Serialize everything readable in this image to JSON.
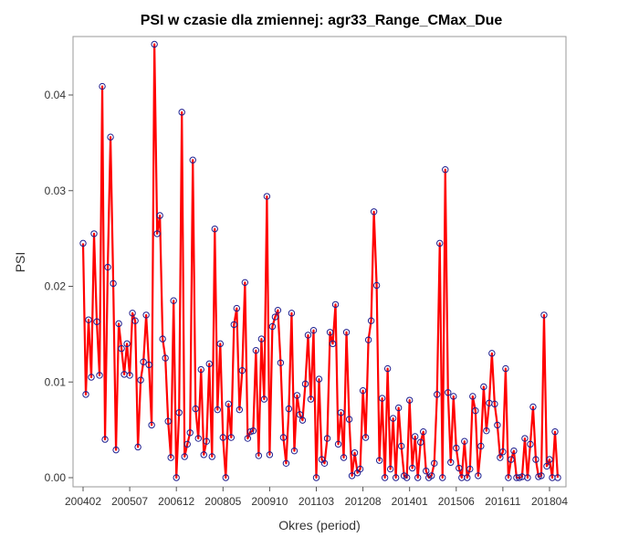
{
  "chart_data": {
    "type": "line",
    "title": "PSI w czasie dla zmiennej: agr33_Range_CMax_Due",
    "xlabel": "Okres (period)",
    "ylabel": "PSI",
    "x_tick_labels": [
      "200402",
      "200507",
      "200612",
      "200805",
      "200910",
      "201103",
      "201208",
      "201401",
      "201506",
      "201611",
      "201804"
    ],
    "x_tick_indices": [
      0,
      17,
      34,
      51,
      68,
      85,
      102,
      119,
      136,
      153,
      170
    ],
    "y_ticks": [
      0.0,
      0.01,
      0.02,
      0.03,
      0.04
    ],
    "y_tick_labels": [
      "0.00",
      "0.01",
      "0.02",
      "0.03",
      "0.04"
    ],
    "ylim": [
      -0.001,
      0.0465
    ],
    "grid": false,
    "line_color": "#ff0000",
    "marker_color": "#1f1f8f",
    "series": [
      {
        "values": [
          0.0245,
          0.0087,
          0.0165,
          0.0105,
          0.0255,
          0.0163,
          0.0107,
          0.0409,
          0.004,
          0.022,
          0.0356,
          0.0203,
          0.0029,
          0.0161,
          0.0135,
          0.0108,
          0.014,
          0.0107,
          0.0172,
          0.0164,
          0.0032,
          0.0102,
          0.0121,
          0.017,
          0.0118,
          0.0055,
          0.0453,
          0.0255,
          0.0274,
          0.0145,
          0.0125,
          0.0059,
          0.0021,
          0.0185,
          0.0,
          0.0068,
          0.0382,
          0.0022,
          0.0035,
          0.0047,
          0.0332,
          0.0072,
          0.0041,
          0.0113,
          0.0024,
          0.0038,
          0.0119,
          0.0022,
          0.026,
          0.0071,
          0.014,
          0.0042,
          0.0,
          0.0077,
          0.0042,
          0.016,
          0.0177,
          0.0071,
          0.0112,
          0.0204,
          0.0041,
          0.0048,
          0.0049,
          0.0133,
          0.0023,
          0.0145,
          0.0082,
          0.0294,
          0.0024,
          0.0158,
          0.0168,
          0.0175,
          0.012,
          0.0042,
          0.0015,
          0.0072,
          0.0172,
          0.0028,
          0.0086,
          0.0066,
          0.006,
          0.0098,
          0.0149,
          0.0082,
          0.0154,
          0.0,
          0.0103,
          0.0019,
          0.0015,
          0.0041,
          0.0152,
          0.014,
          0.0181,
          0.0035,
          0.0068,
          0.0021,
          0.0152,
          0.0061,
          0.0002,
          0.0026,
          0.0005,
          0.0009,
          0.0091,
          0.0042,
          0.0144,
          0.0164,
          0.0278,
          0.0201,
          0.0018,
          0.0083,
          0.0,
          0.0114,
          0.0009,
          0.0062,
          0.0,
          0.0073,
          0.0033,
          0.0002,
          0.0,
          0.0081,
          0.001,
          0.0043,
          0.0,
          0.0037,
          0.0048,
          0.0007,
          0.0,
          0.0002,
          0.0015,
          0.0087,
          0.0245,
          0.0,
          0.0322,
          0.0089,
          0.0016,
          0.0085,
          0.0031,
          0.001,
          0.0,
          0.0038,
          0.0,
          0.0009,
          0.0085,
          0.007,
          0.0002,
          0.0033,
          0.0095,
          0.0049,
          0.0078,
          0.013,
          0.0077,
          0.0055,
          0.0021,
          0.0027,
          0.0114,
          0.0,
          0.0019,
          0.0028,
          0.0,
          0.0,
          0.0001,
          0.0041,
          0.0,
          0.0035,
          0.0074,
          0.0019,
          0.0001,
          0.0002,
          0.017,
          0.0012,
          0.0019,
          0.0,
          0.0048,
          0.0
        ]
      }
    ]
  }
}
